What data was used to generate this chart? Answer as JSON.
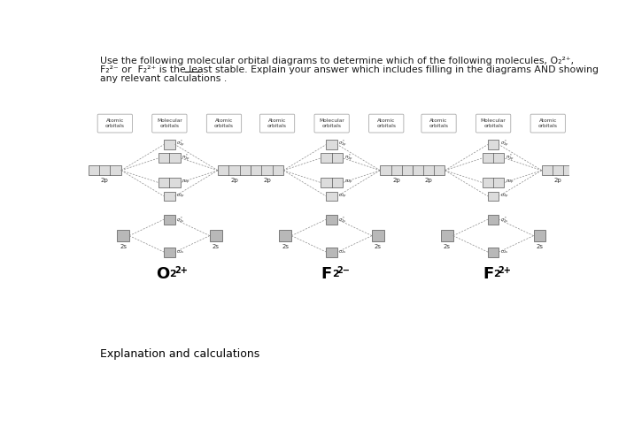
{
  "title_lines": [
    "Use the following molecular orbital diagrams to determine which of the following molecules, O₂²⁺,",
    "F₂²⁻ or  F₂²⁺ is the least stable. Explain your answer which includes filling in the diagrams AND showing",
    "any relevant calculations ."
  ],
  "diagrams": [
    {
      "label": "O",
      "charge": "2+",
      "subscript": "2"
    },
    {
      "label": "F",
      "charge": "2−",
      "subscript": "2"
    },
    {
      "label": "F",
      "charge": "2+",
      "subscript": "2"
    }
  ],
  "footer_text": "Explanation and calculations",
  "bg_color": "#ffffff",
  "text_color": "#1a1a1a",
  "box_light": "#dcdcdc",
  "box_medium": "#b8b8b8",
  "dashed_color": "#888888",
  "header_box_color": "#ffffff",
  "header_edge_color": "#aaaaaa"
}
